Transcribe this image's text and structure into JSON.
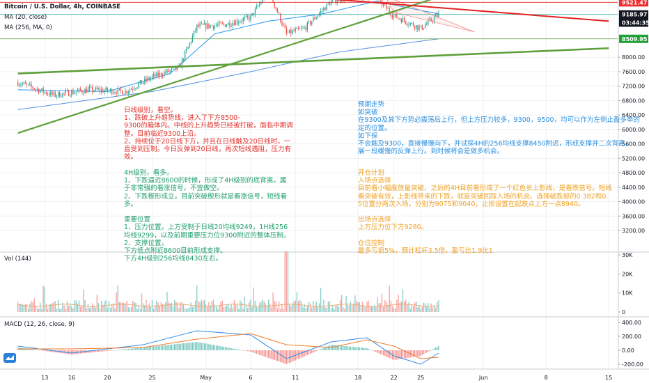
{
  "header": {
    "symbol_line": "Bitcoin / U.S. Dollar, 4h, COINBASE",
    "ma20": "MA (20, close)",
    "ma256": "MA (256, MA, 0)"
  },
  "price_badges": [
    {
      "text": "9521.47",
      "bg": "#ef2b2b",
      "price": 9521.47
    },
    {
      "text": "9185.97",
      "bg": "#131722",
      "price": 9185.97
    },
    {
      "text": "03:44:35",
      "bg": "#131722",
      "price": 8960
    },
    {
      "text": "8509.95",
      "bg": "#21a038",
      "price": 8509.95
    }
  ],
  "colors": {
    "up": "#26a69a",
    "down": "#ef5350",
    "ma20": "#2196f3",
    "ma256": "#4f91e8",
    "trend_green": "#5e9f3a",
    "trend_red": "#e12020",
    "macd": "#2e8be8",
    "signal": "#f07b2a"
  },
  "price_pane": {
    "title": "",
    "y_ticks": [
      "8000.00",
      "7600.00",
      "7200.00",
      "6800.00",
      "6400.00",
      "6000.00",
      "5600.00",
      "5200.00",
      "4800.00",
      "4400.00",
      "4000.00",
      "3600.00",
      "3200.00"
    ],
    "ylim": [
      3000,
      9600
    ]
  },
  "volume_pane": {
    "label": "Vol (144)",
    "y_ticks": [
      "30K",
      "20K",
      "10K",
      "0"
    ]
  },
  "macd_pane": {
    "label": "MACD (12, 26, close, 9)",
    "y_ticks": [
      "400.00",
      "200.00",
      "0.00",
      "-200.00"
    ]
  },
  "x_axis": {
    "ticks": [
      "13",
      "16",
      "20",
      "25",
      "May",
      "6",
      "11",
      "18",
      "22",
      "25",
      "Jun",
      "8",
      "15"
    ]
  },
  "chart_data": {
    "type": "candlestick",
    "title": "",
    "x_range": [
      "2020-04-10",
      "2020-05-27"
    ],
    "price_path": [
      {
        "t": "2020-04-10",
        "price": 7300
      },
      {
        "t": "2020-04-14",
        "price": 6950
      },
      {
        "t": "2020-04-18",
        "price": 7100
      },
      {
        "t": "2020-04-22",
        "price": 7050
      },
      {
        "t": "2020-04-25",
        "price": 7450
      },
      {
        "t": "2020-04-28",
        "price": 7700
      },
      {
        "t": "2020-04-30",
        "price": 8850
      },
      {
        "t": "2020-05-03",
        "price": 8900
      },
      {
        "t": "2020-05-06",
        "price": 9100
      },
      {
        "t": "2020-05-08",
        "price": 9850
      },
      {
        "t": "2020-05-10",
        "price": 8650
      },
      {
        "t": "2020-05-12",
        "price": 8800
      },
      {
        "t": "2020-05-15",
        "price": 9550
      },
      {
        "t": "2020-05-18",
        "price": 9750
      },
      {
        "t": "2020-05-20",
        "price": 9650
      },
      {
        "t": "2020-05-22",
        "price": 9150
      },
      {
        "t": "2020-05-25",
        "price": 8800
      },
      {
        "t": "2020-05-27",
        "price": 9185.97
      }
    ],
    "ma20_path": [
      {
        "t": "2020-04-10",
        "price": 7100
      },
      {
        "t": "2020-04-20",
        "price": 7050
      },
      {
        "t": "2020-04-27",
        "price": 7550
      },
      {
        "t": "2020-05-02",
        "price": 8650
      },
      {
        "t": "2020-05-08",
        "price": 9000
      },
      {
        "t": "2020-05-14",
        "price": 9200
      },
      {
        "t": "2020-05-20",
        "price": 9550
      },
      {
        "t": "2020-05-27",
        "price": 9200
      }
    ],
    "ma256_path": [
      {
        "t": "2020-04-10",
        "price": 6550
      },
      {
        "t": "2020-04-25",
        "price": 7050
      },
      {
        "t": "2020-05-06",
        "price": 7600
      },
      {
        "t": "2020-05-16",
        "price": 8150
      },
      {
        "t": "2020-05-27",
        "price": 8509.95
      }
    ],
    "trend_lines": [
      {
        "color": "trend_green",
        "width": 2.2,
        "from": {
          "t": "2020-04-10",
          "price": 5900
        },
        "to": {
          "t": "2020-05-28",
          "price": 9750
        }
      },
      {
        "color": "trend_green",
        "width": 2.6,
        "from": {
          "t": "2020-04-10",
          "price": 7550
        },
        "to": {
          "t": "2020-06-15",
          "price": 8250
        }
      },
      {
        "color": "trend_red",
        "width": 2.0,
        "from": {
          "t": "2020-04-10",
          "price": 10300
        },
        "to": {
          "t": "2020-06-15",
          "price": 9000
        }
      }
    ],
    "h_lines": [
      {
        "price": 9521.47,
        "color": "#e12020"
      },
      {
        "price": 9185.97,
        "color": "#26a69a"
      },
      {
        "price": 8509.95,
        "color": "#5e9f3a"
      }
    ],
    "volume_peak_k": 32,
    "macd_path": [
      {
        "t": "2020-04-10",
        "macd": 60,
        "signal": 20
      },
      {
        "t": "2020-04-16",
        "macd": -40,
        "signal": 20
      },
      {
        "t": "2020-04-24",
        "macd": 80,
        "signal": 40
      },
      {
        "t": "2020-04-30",
        "macd": 280,
        "signal": 160
      },
      {
        "t": "2020-05-06",
        "macd": 220,
        "signal": 240
      },
      {
        "t": "2020-05-10",
        "macd": -120,
        "signal": 80
      },
      {
        "t": "2020-05-15",
        "macd": 120,
        "signal": 40
      },
      {
        "t": "2020-05-19",
        "macd": 180,
        "signal": 150
      },
      {
        "t": "2020-05-22",
        "macd": -80,
        "signal": 60
      },
      {
        "t": "2020-05-25",
        "macd": -200,
        "signal": -120
      },
      {
        "t": "2020-05-27",
        "macd": -40,
        "signal": -100
      }
    ]
  },
  "annotations": {
    "daily": {
      "color": "#e0302a",
      "lines": [
        "日线级别，看空。",
        "1、跌破上升趋势线，进入了下方8500-",
        "9300的箱体内。中线的上升趋势已经被打破，面临中期调",
        "整。目前临近9300上沿。",
        "2、持续位于20日线下方，并且在日线触及20日线时，一",
        "直受到压制。今日反弹到20日线，再次短线遇阻，压力有",
        "效。"
      ]
    },
    "h4": {
      "color": "#1e9e6a",
      "lines": [
        "4H级别，看多。",
        "1、下跌逼近8600的时候，形成了4H级别的底背离，属",
        "于非常强的看涨信号，不宜做空。",
        "2、下跌楔形成立。目前突破楔形就是看涨信号，短线看",
        "多。",
        "",
        "重要位置",
        "1、压力位置。上方受制于日线20均线9249，1H线256",
        "均线9299，以及前期重要压力位9300附近的整体压制。",
        "2、支撑位置。",
        "下方低点附近8600目前形成支撑。",
        "下方4H级别256均线8430左右。"
      ]
    },
    "forecast": {
      "color": "#2a8fe0",
      "lines": [
        "预期走势",
        "如突破",
        "在9300及其下方势必震荡后上行，但上方压力较多，9300，9500，均可以作为左侧止盈多单的",
        "定的位置。",
        "如下探",
        "不会触及9300，直接慢慢向下，并试探4H的256均线支撑8450附近，形成支撑并二次背离，",
        "展一段缓慢的反弹上行。到时候将会是做多机会。"
      ]
    },
    "plan": {
      "color": "#f0a020",
      "lines": [
        "开仓计划",
        "入场点选择",
        "目前看小幅度放量突破，之后的4H目前看形成了一个红色长上影线，是看跌信号。短线",
        "看突破有效，上影线将来的下跌，就是突破回踩入场的机会。选择破跌部的0.382和0.",
        "5位置分两次入场，分别为9075和9040，止损设置在起跌点上方一点8940。",
        "",
        "出场点选择",
        "上方压力位下方9280。",
        "",
        "仓位控制",
        "最多亏损5%，预计杠杆3.5倍，盈亏比1.9比1"
      ]
    }
  }
}
